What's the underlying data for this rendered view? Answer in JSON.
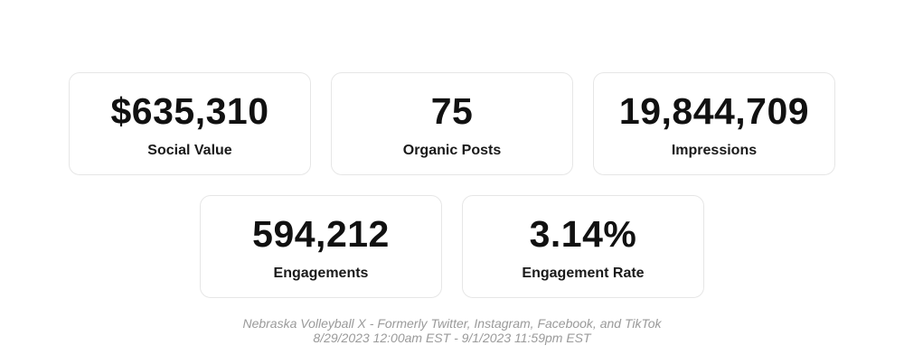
{
  "stats": [
    {
      "value": "$635,310",
      "label": "Social Value"
    },
    {
      "value": "75",
      "label": "Organic Posts"
    },
    {
      "value": "19,844,709",
      "label": "Impressions"
    },
    {
      "value": "594,212",
      "label": "Engagements"
    },
    {
      "value": "3.14%",
      "label": "Engagement Rate"
    }
  ],
  "footer": {
    "source": "Nebraska Volleyball X - Formerly Twitter, Instagram, Facebook, and TikTok",
    "date_range": "8/29/2023 12:00am EST - 9/1/2023 11:59pm EST"
  }
}
